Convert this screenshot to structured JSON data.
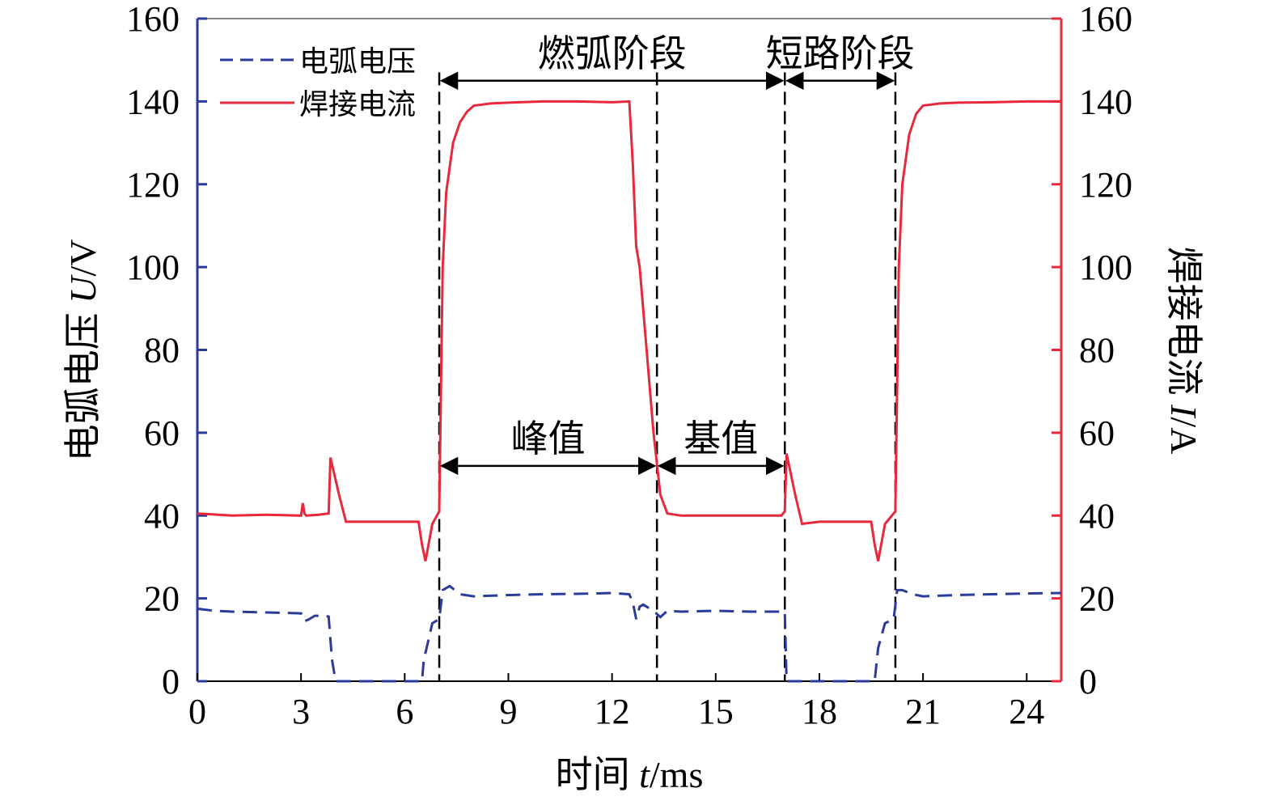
{
  "chart_data": {
    "type": "line",
    "xlabel_prefix": "时间 ",
    "xlabel_var": "t",
    "xlabel_unit": "/ms",
    "ylabel_left_prefix": "电弧电压 ",
    "ylabel_left_var": "U",
    "ylabel_left_unit": "/V",
    "ylabel_right_prefix": "焊接电流 ",
    "ylabel_right_var": "I",
    "ylabel_right_unit": "/A",
    "xlim": [
      0,
      25
    ],
    "ylim_left": [
      0,
      160
    ],
    "ylim_right": [
      0,
      160
    ],
    "x_ticks": [
      0,
      3,
      6,
      9,
      12,
      15,
      18,
      21,
      24
    ],
    "y_ticks_left": [
      0,
      20,
      40,
      60,
      80,
      100,
      120,
      140,
      160
    ],
    "y_ticks_right": [
      0,
      20,
      40,
      60,
      80,
      100,
      120,
      140,
      160
    ],
    "grid": false,
    "legend_position": "top-left",
    "colors": {
      "voltage": "#2a3b9c",
      "current": "#e8283c",
      "axis_left": "#2a3b9c",
      "axis_right": "#e8283c"
    },
    "series": [
      {
        "name": "电弧电压",
        "axis": "left",
        "style": "dashed",
        "x": [
          0,
          0.5,
          1,
          2,
          3,
          3.1,
          3.2,
          3.4,
          3.6,
          3.8,
          3.85,
          3.9,
          4.0,
          4.5,
          5,
          6,
          6.5,
          6.55,
          6.8,
          7.0,
          7.1,
          7.3,
          7.6,
          8,
          9,
          10,
          11,
          12,
          12.5,
          12.6,
          12.7,
          12.8,
          12.9,
          13.2,
          13.4,
          13.6,
          14,
          15,
          16,
          16.9,
          17.0,
          17.05,
          17.3,
          18,
          19,
          19.6,
          19.7,
          19.9,
          20.15,
          20.25,
          20.4,
          20.7,
          21,
          22,
          23,
          24,
          25
        ],
        "y": [
          17.5,
          17,
          16.8,
          16.6,
          16.4,
          14.5,
          14.8,
          15.8,
          15.8,
          15.6,
          10,
          5,
          0,
          0,
          0,
          0,
          0,
          5,
          14,
          15,
          22,
          23,
          21,
          20.5,
          20.8,
          21,
          21.1,
          21.3,
          21,
          19,
          15,
          18,
          18.5,
          17,
          15.5,
          17,
          16.8,
          17,
          16.8,
          16.8,
          16.8,
          0,
          0,
          0,
          0,
          0,
          8,
          14,
          15,
          22,
          22,
          21,
          20.5,
          20.8,
          21,
          21.2,
          21.3
        ]
      },
      {
        "name": "焊接电流",
        "axis": "right",
        "style": "solid",
        "x": [
          0,
          1,
          2,
          3,
          3.05,
          3.1,
          3.15,
          3.5,
          3.8,
          3.85,
          4.1,
          4.3,
          5,
          6,
          6.4,
          6.5,
          6.6,
          6.8,
          7.0,
          7.1,
          7.2,
          7.4,
          7.6,
          7.8,
          8,
          8.5,
          9,
          10,
          11,
          12,
          12.5,
          12.6,
          12.7,
          12.8,
          13,
          13.2,
          13.4,
          13.6,
          14,
          15,
          16,
          16.9,
          17.0,
          17.05,
          17.3,
          17.5,
          18,
          19,
          19.5,
          19.6,
          19.7,
          19.9,
          20.2,
          20.3,
          20.4,
          20.6,
          20.8,
          21,
          21.5,
          22,
          23,
          24,
          25
        ],
        "y": [
          40.5,
          40,
          40.2,
          40,
          43,
          40.5,
          40,
          40.2,
          40.5,
          54,
          45,
          38.5,
          38.5,
          38.5,
          38.5,
          33,
          29,
          38,
          41,
          100,
          118,
          130,
          135,
          137.5,
          139,
          139.5,
          139.7,
          140,
          140,
          139.8,
          140,
          125,
          105,
          100,
          80,
          60,
          45,
          40.5,
          40,
          40,
          40,
          40,
          41,
          55,
          45,
          38,
          38.5,
          38.5,
          38.5,
          33,
          29,
          38,
          41,
          100,
          120,
          132,
          137,
          139,
          139.5,
          139.7,
          139.8,
          140,
          140
        ]
      }
    ],
    "phase_lines_x": [
      7.0,
      13.3,
      17.0,
      20.2
    ],
    "annotations": [
      {
        "text": "燃弧阶段",
        "from": 7.0,
        "to": 17.0,
        "y": 145
      },
      {
        "text": "短路阶段",
        "from": 17.0,
        "to": 20.2,
        "y": 145
      },
      {
        "text": "峰值",
        "from": 7.0,
        "to": 13.3,
        "y": 52
      },
      {
        "text": "基值",
        "from": 13.3,
        "to": 17.0,
        "y": 52
      }
    ]
  }
}
